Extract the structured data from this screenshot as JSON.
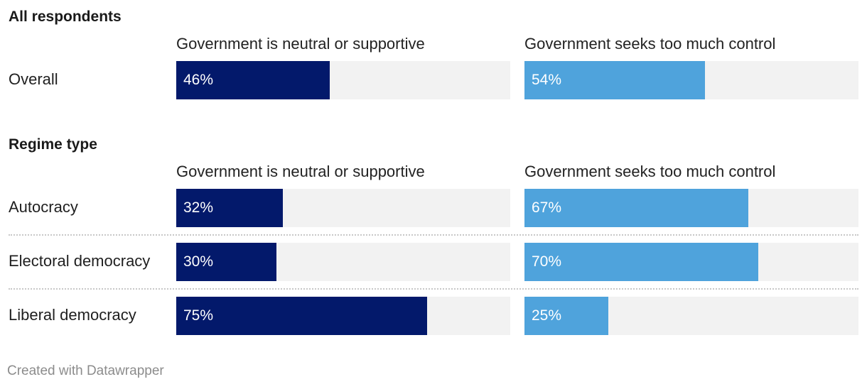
{
  "colors": {
    "neutral_supportive": "#03196b",
    "too_much_control": "#4fa3dc",
    "track": "#f2f2f2"
  },
  "chart_data": {
    "type": "bar",
    "orientation": "horizontal",
    "unit": "%",
    "xlim": [
      0,
      100
    ],
    "series_names": [
      "Government is neutral or supportive",
      "Government seeks too much control"
    ],
    "groups": [
      {
        "title": "All respondents",
        "rows": [
          {
            "label": "Overall",
            "neutral": 46,
            "neutral_label": "46%",
            "control": 54,
            "control_label": "54%"
          }
        ]
      },
      {
        "title": "Regime type",
        "rows": [
          {
            "label": "Autocracy",
            "neutral": 32,
            "neutral_label": "32%",
            "control": 67,
            "control_label": "67%"
          },
          {
            "label": "Electoral democracy",
            "neutral": 30,
            "neutral_label": "30%",
            "control": 70,
            "control_label": "70%"
          },
          {
            "label": "Liberal democracy",
            "neutral": 75,
            "neutral_label": "75%",
            "control": 25,
            "control_label": "25%"
          }
        ]
      }
    ]
  },
  "footer": "Created with Datawrapper"
}
